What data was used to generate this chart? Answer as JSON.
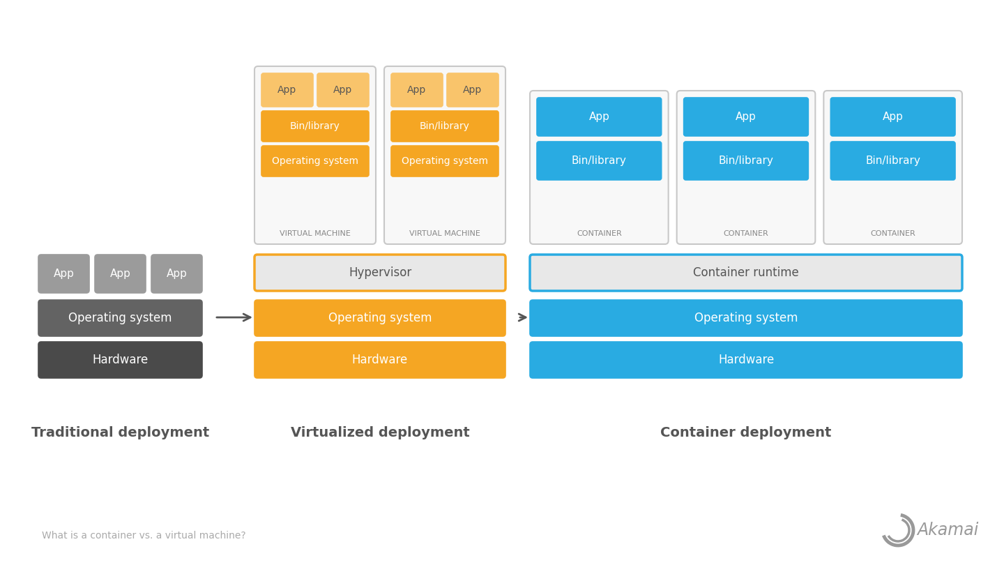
{
  "bg_color": "#ffffff",
  "orange": "#F5A623",
  "orange_light": "#F9C46B",
  "dark_gray1": "#4A4A4A",
  "dark_gray2": "#636363",
  "app_gray": "#9B9B9B",
  "light_gray": "#E8E8E8",
  "blue": "#29ABE2",
  "border_gray": "#C8C8C8",
  "text_white": "#ffffff",
  "text_dark": "#555555",
  "text_label": "#888888",
  "akamai_gray": "#999999",
  "footer_text_color": "#aaaaaa",
  "title_traditional": "Traditional deployment",
  "title_virtualized": "Virtualized deployment",
  "title_container": "Container deployment",
  "footer_left": "What is a container vs. a virtual machine?",
  "footer_right": "Akamai"
}
